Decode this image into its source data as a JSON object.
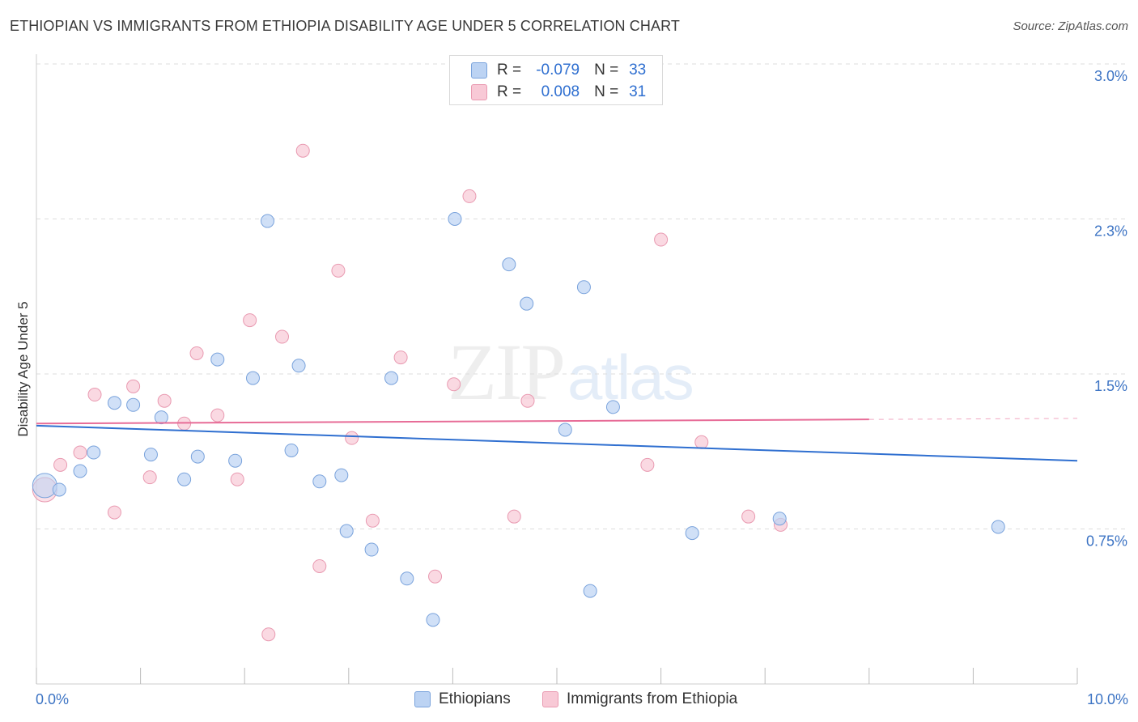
{
  "title": "ETHIOPIAN VS IMMIGRANTS FROM ETHIOPIA DISABILITY AGE UNDER 5 CORRELATION CHART",
  "source": "Source: ZipAtlas.com",
  "watermark": {
    "zip": "ZIP",
    "atlas": "atlas"
  },
  "legend": {
    "rows": [
      {
        "r_label": "R =",
        "r_value": "-0.079",
        "n_label": "N =",
        "n_value": "33"
      },
      {
        "r_label": "R =",
        "r_value": "0.008",
        "n_label": "N =",
        "n_value": "31"
      }
    ]
  },
  "bottom_legend": {
    "series1": "Ethiopians",
    "series2": "Immigrants from Ethiopia"
  },
  "chart_data": {
    "type": "scatter",
    "title": "ETHIOPIAN VS IMMIGRANTS FROM ETHIOPIA DISABILITY AGE UNDER 5 CORRELATION CHART",
    "xlabel": "",
    "ylabel": "Disability Age Under 5",
    "xlim": [
      0,
      10
    ],
    "ylim": [
      0,
      3.0
    ],
    "x_tick_labels": [
      "0.0%",
      "10.0%"
    ],
    "y_ticks": [
      0.75,
      1.5,
      2.25,
      3.0
    ],
    "y_tick_labels": [
      "0.75%",
      "1.5%",
      "2.3%",
      "3.0%"
    ],
    "colors": {
      "blue_fill": "#bcd3f3",
      "blue_stroke": "#7aa3dc",
      "blue_line": "#2f6fd0",
      "pink_fill": "#f8c9d6",
      "pink_stroke": "#e99ab1",
      "pink_line": "#e76c97",
      "grid": "#dddddd",
      "axis_label": "#3d74c4"
    },
    "series": [
      {
        "name": "Ethiopians",
        "color": "blue",
        "trend": {
          "x0": 0,
          "y0": 1.25,
          "x1": 10,
          "y1": 1.08
        },
        "points": [
          {
            "x": 0.08,
            "y": 0.96,
            "big": true
          },
          {
            "x": 0.22,
            "y": 0.94
          },
          {
            "x": 0.42,
            "y": 1.03
          },
          {
            "x": 0.55,
            "y": 1.12
          },
          {
            "x": 0.75,
            "y": 1.36
          },
          {
            "x": 0.93,
            "y": 1.35
          },
          {
            "x": 1.1,
            "y": 1.11
          },
          {
            "x": 1.2,
            "y": 1.29
          },
          {
            "x": 1.42,
            "y": 0.99
          },
          {
            "x": 1.55,
            "y": 1.1
          },
          {
            "x": 1.74,
            "y": 1.57
          },
          {
            "x": 1.91,
            "y": 1.08
          },
          {
            "x": 2.08,
            "y": 1.48
          },
          {
            "x": 2.22,
            "y": 2.24
          },
          {
            "x": 2.45,
            "y": 1.13
          },
          {
            "x": 2.52,
            "y": 1.54
          },
          {
            "x": 2.72,
            "y": 0.98
          },
          {
            "x": 2.93,
            "y": 1.01
          },
          {
            "x": 2.98,
            "y": 0.74
          },
          {
            "x": 3.22,
            "y": 0.65
          },
          {
            "x": 3.41,
            "y": 1.48
          },
          {
            "x": 3.56,
            "y": 0.51
          },
          {
            "x": 3.81,
            "y": 0.31
          },
          {
            "x": 4.02,
            "y": 2.25
          },
          {
            "x": 4.54,
            "y": 2.03
          },
          {
            "x": 4.71,
            "y": 1.84
          },
          {
            "x": 5.08,
            "y": 1.23
          },
          {
            "x": 5.26,
            "y": 1.92
          },
          {
            "x": 5.32,
            "y": 0.45
          },
          {
            "x": 5.54,
            "y": 1.34
          },
          {
            "x": 6.3,
            "y": 0.73
          },
          {
            "x": 7.14,
            "y": 0.8
          },
          {
            "x": 9.24,
            "y": 0.76
          }
        ]
      },
      {
        "name": "Immigrants from Ethiopia",
        "color": "pink",
        "trend": {
          "x0": 0,
          "y0": 1.26,
          "x1": 8.0,
          "y1": 1.28,
          "dash_to_x": 10,
          "dash_to_y": 1.285
        },
        "points": [
          {
            "x": 0.08,
            "y": 0.94,
            "big": true
          },
          {
            "x": 0.23,
            "y": 1.06
          },
          {
            "x": 0.42,
            "y": 1.12
          },
          {
            "x": 0.56,
            "y": 1.4
          },
          {
            "x": 0.75,
            "y": 0.83
          },
          {
            "x": 0.93,
            "y": 1.44
          },
          {
            "x": 1.09,
            "y": 1.0
          },
          {
            "x": 1.23,
            "y": 1.37
          },
          {
            "x": 1.42,
            "y": 1.26
          },
          {
            "x": 1.54,
            "y": 1.6
          },
          {
            "x": 1.74,
            "y": 1.3
          },
          {
            "x": 1.93,
            "y": 0.99
          },
          {
            "x": 2.05,
            "y": 1.76
          },
          {
            "x": 2.23,
            "y": 0.24
          },
          {
            "x": 2.36,
            "y": 1.68
          },
          {
            "x": 2.56,
            "y": 2.58
          },
          {
            "x": 2.72,
            "y": 0.57
          },
          {
            "x": 2.9,
            "y": 2.0
          },
          {
            "x": 3.03,
            "y": 1.19
          },
          {
            "x": 3.23,
            "y": 0.79
          },
          {
            "x": 3.5,
            "y": 1.58
          },
          {
            "x": 3.83,
            "y": 0.52
          },
          {
            "x": 4.01,
            "y": 1.45
          },
          {
            "x": 4.16,
            "y": 2.36
          },
          {
            "x": 4.59,
            "y": 0.81
          },
          {
            "x": 4.72,
            "y": 1.37
          },
          {
            "x": 5.87,
            "y": 1.06
          },
          {
            "x": 6.0,
            "y": 2.15
          },
          {
            "x": 6.39,
            "y": 1.17
          },
          {
            "x": 6.84,
            "y": 0.81
          },
          {
            "x": 7.15,
            "y": 0.77
          }
        ]
      }
    ]
  }
}
